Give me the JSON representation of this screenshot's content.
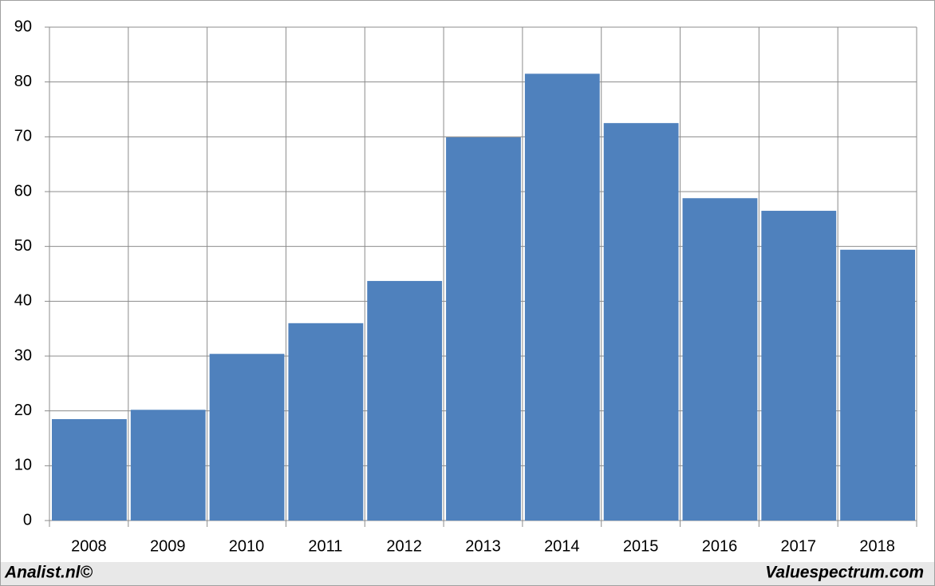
{
  "chart_data": {
    "type": "bar",
    "categories": [
      "2008",
      "2009",
      "2010",
      "2011",
      "2012",
      "2013",
      "2014",
      "2015",
      "2016",
      "2017",
      "2018"
    ],
    "values": [
      18.5,
      20.2,
      30.4,
      36.0,
      43.7,
      69.9,
      81.5,
      72.5,
      58.8,
      56.5,
      49.4
    ],
    "color": "#4f81bd",
    "ylim": [
      0,
      90
    ],
    "yticks": [
      0,
      10,
      20,
      30,
      40,
      50,
      60,
      70,
      80,
      90
    ],
    "grid": true,
    "annotations": [
      "Analist.nl©",
      "Valuespectrum.com"
    ]
  }
}
